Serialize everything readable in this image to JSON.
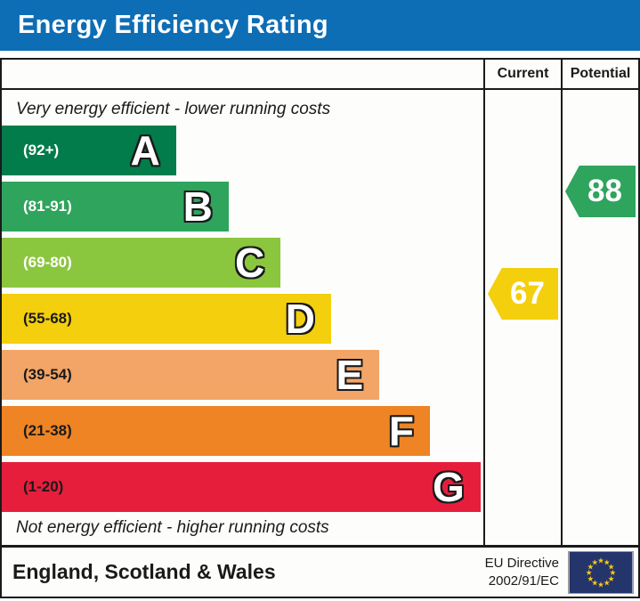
{
  "title": "Energy Efficiency Rating",
  "columns": {
    "current": "Current",
    "potential": "Potential"
  },
  "top_note": "Very energy efficient - lower running costs",
  "bottom_note": "Not energy efficient - higher running costs",
  "bands": [
    {
      "letter": "A",
      "range": "(92+)",
      "color": "#037c4c",
      "width_pct": 36.2,
      "label_color": "#ffffff"
    },
    {
      "letter": "B",
      "range": "(81-91)",
      "color": "#2fa45c",
      "width_pct": 47.1,
      "label_color": "#ffffff"
    },
    {
      "letter": "C",
      "range": "(69-80)",
      "color": "#8bc63f",
      "width_pct": 57.9,
      "label_color": "#ffffff"
    },
    {
      "letter": "D",
      "range": "(55-68)",
      "color": "#f4cf0d",
      "width_pct": 68.4,
      "label_color": "#1a1a1a"
    },
    {
      "letter": "E",
      "range": "(39-54)",
      "color": "#f2a566",
      "width_pct": 78.4,
      "label_color": "#1a1a1a"
    },
    {
      "letter": "F",
      "range": "(21-38)",
      "color": "#ee8424",
      "width_pct": 88.9,
      "label_color": "#1a1a1a"
    },
    {
      "letter": "G",
      "range": "(1-20)",
      "color": "#e61e3c",
      "width_pct": 99.4,
      "label_color": "#1a1a1a"
    }
  ],
  "ratings": {
    "current": {
      "value": "67",
      "color": "#f4cf0d",
      "band": "D"
    },
    "potential": {
      "value": "88",
      "color": "#2fa45c",
      "band": "B"
    }
  },
  "footer": {
    "region": "England, Scotland & Wales",
    "directive_line1": "EU Directive",
    "directive_line2": "2002/91/EC"
  },
  "colors": {
    "title_bar": "#0d6eb5",
    "eu_flag_blue": "#24356b",
    "eu_flag_star": "#f8c819"
  },
  "chart_data": {
    "type": "bar",
    "title": "Energy Efficiency Rating",
    "orientation": "horizontal",
    "categories": [
      "A",
      "B",
      "C",
      "D",
      "E",
      "F",
      "G"
    ],
    "band_ranges": [
      "92+",
      "81-91",
      "69-80",
      "55-68",
      "39-54",
      "21-38",
      "1-20"
    ],
    "band_colors": [
      "#037c4c",
      "#2fa45c",
      "#8bc63f",
      "#f4cf0d",
      "#f2a566",
      "#ee8424",
      "#e61e3c"
    ],
    "bar_lengths_pct": [
      36.2,
      47.1,
      57.9,
      68.4,
      78.4,
      88.9,
      99.4
    ],
    "series": [
      {
        "name": "Current",
        "value": 67,
        "band": "D"
      },
      {
        "name": "Potential",
        "value": 88,
        "band": "B"
      }
    ],
    "annotations": [
      "Very energy efficient - lower running costs",
      "Not energy efficient - higher running costs"
    ],
    "legend_position": "none",
    "grid": false
  }
}
